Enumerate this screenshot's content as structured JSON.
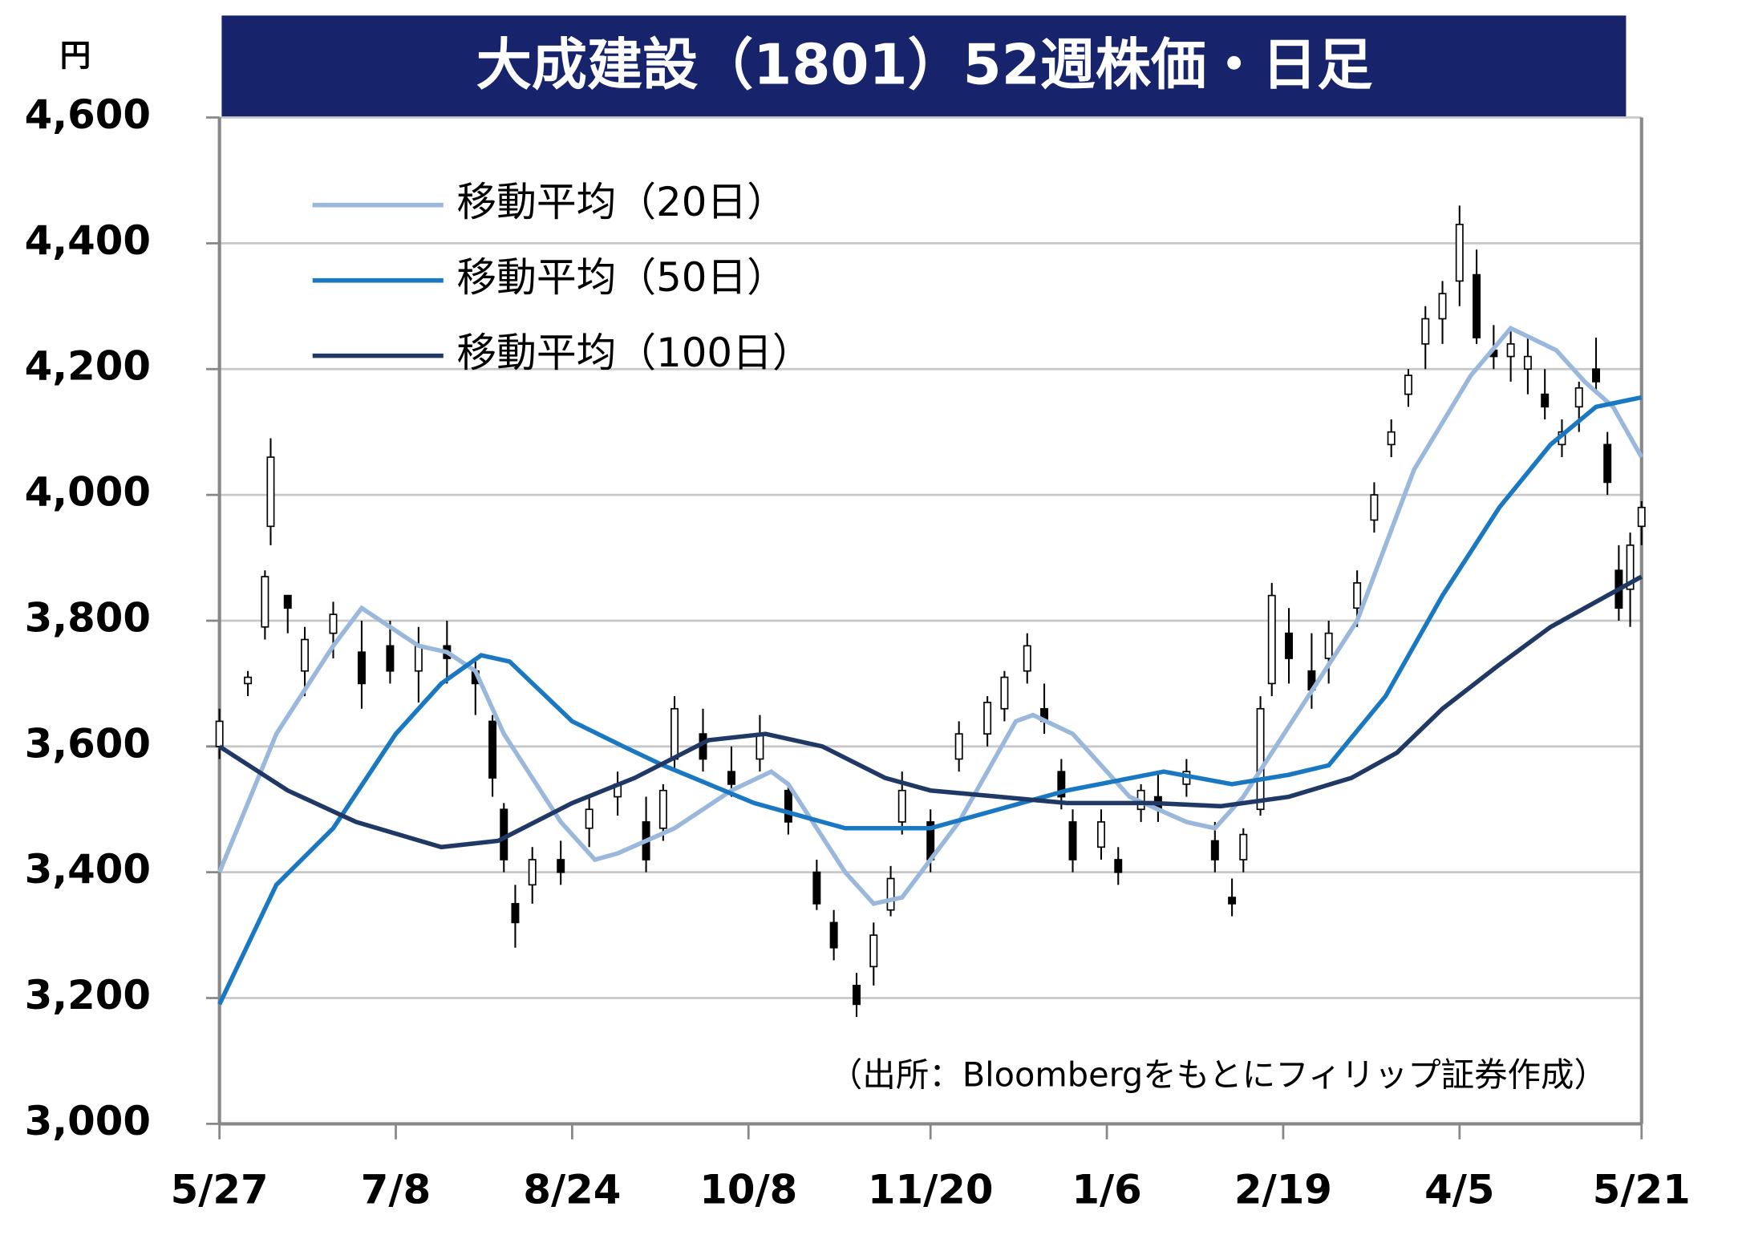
{
  "chart_data": {
    "type": "candlestick",
    "title": "大成建設（1801）52週株価・日足",
    "y_unit": "円",
    "source": "（出所：Bloombergをもとにフィリップ証券作成）",
    "xlim": [
      0,
      250
    ],
    "xticks": [
      {
        "value": 0,
        "label": "5/27"
      },
      {
        "value": 31,
        "label": "7/8"
      },
      {
        "value": 62,
        "label": "8/24"
      },
      {
        "value": 93,
        "label": "10/8"
      },
      {
        "value": 125,
        "label": "11/20"
      },
      {
        "value": 156,
        "label": "1/6"
      },
      {
        "value": 187,
        "label": "2/19"
      },
      {
        "value": 218,
        "label": "4/5"
      },
      {
        "value": 250,
        "label": "5/21"
      }
    ],
    "ylim": [
      3000,
      4600
    ],
    "yticks": [
      {
        "value": 3000,
        "label": "3,000"
      },
      {
        "value": 3200,
        "label": "3,200"
      },
      {
        "value": 3400,
        "label": "3,400"
      },
      {
        "value": 3600,
        "label": "3,600"
      },
      {
        "value": 3800,
        "label": "3,800"
      },
      {
        "value": 4000,
        "label": "4,000"
      },
      {
        "value": 4200,
        "label": "4,200"
      },
      {
        "value": 4400,
        "label": "4,400"
      },
      {
        "value": 4600,
        "label": "4,600"
      }
    ],
    "grid": true,
    "candles": {
      "x": [
        0,
        5,
        8,
        9,
        12,
        15,
        20,
        25,
        30,
        35,
        40,
        45,
        48,
        50,
        52,
        55,
        60,
        65,
        70,
        75,
        78,
        80,
        85,
        90,
        95,
        100,
        105,
        108,
        112,
        115,
        118,
        120,
        125,
        130,
        135,
        138,
        142,
        145,
        148,
        150,
        155,
        158,
        162,
        165,
        170,
        175,
        178,
        180,
        183,
        185,
        188,
        192,
        195,
        200,
        203,
        206,
        209,
        212,
        215,
        218,
        221,
        224,
        227,
        230,
        233,
        236,
        239,
        242,
        244,
        246,
        248,
        250
      ],
      "open": [
        3600,
        3700,
        3790,
        3950,
        3840,
        3720,
        3780,
        3750,
        3760,
        3720,
        3760,
        3720,
        3640,
        3500,
        3350,
        3380,
        3420,
        3470,
        3520,
        3480,
        3470,
        3580,
        3620,
        3560,
        3580,
        3530,
        3400,
        3320,
        3220,
        3250,
        3340,
        3480,
        3480,
        3580,
        3620,
        3660,
        3720,
        3660,
        3560,
        3480,
        3440,
        3420,
        3500,
        3520,
        3540,
        3450,
        3360,
        3420,
        3500,
        3700,
        3780,
        3720,
        3740,
        3820,
        3960,
        4080,
        4160,
        4240,
        4280,
        4340,
        4350,
        4230,
        4220,
        4200,
        4160,
        4080,
        4140,
        4200,
        4080,
        3880,
        3850,
        3950
      ],
      "high": [
        3660,
        3720,
        3880,
        4090,
        3840,
        3790,
        3830,
        3800,
        3800,
        3790,
        3800,
        3740,
        3650,
        3510,
        3380,
        3440,
        3450,
        3520,
        3560,
        3520,
        3540,
        3680,
        3660,
        3600,
        3650,
        3540,
        3420,
        3340,
        3240,
        3320,
        3410,
        3560,
        3500,
        3640,
        3680,
        3720,
        3780,
        3700,
        3580,
        3500,
        3500,
        3440,
        3540,
        3560,
        3580,
        3480,
        3390,
        3470,
        3680,
        3860,
        3820,
        3780,
        3800,
        3880,
        4020,
        4120,
        4200,
        4300,
        4340,
        4460,
        4390,
        4270,
        4260,
        4250,
        4200,
        4120,
        4180,
        4250,
        4100,
        3920,
        3940,
        3990
      ],
      "low": [
        3580,
        3680,
        3770,
        3920,
        3780,
        3680,
        3740,
        3660,
        3700,
        3670,
        3700,
        3650,
        3520,
        3400,
        3280,
        3350,
        3380,
        3440,
        3490,
        3400,
        3450,
        3560,
        3560,
        3520,
        3560,
        3460,
        3340,
        3260,
        3170,
        3220,
        3330,
        3460,
        3400,
        3560,
        3600,
        3640,
        3700,
        3620,
        3500,
        3400,
        3420,
        3380,
        3480,
        3480,
        3520,
        3400,
        3330,
        3400,
        3490,
        3680,
        3700,
        3660,
        3700,
        3790,
        3940,
        4060,
        4140,
        4200,
        4240,
        4300,
        4240,
        4200,
        4180,
        4160,
        4120,
        4060,
        4100,
        4160,
        4000,
        3800,
        3790,
        3920
      ],
      "close": [
        3640,
        3710,
        3870,
        4060,
        3820,
        3770,
        3810,
        3700,
        3720,
        3760,
        3740,
        3700,
        3550,
        3420,
        3320,
        3420,
        3400,
        3500,
        3540,
        3420,
        3530,
        3660,
        3580,
        3540,
        3620,
        3480,
        3350,
        3280,
        3190,
        3300,
        3390,
        3530,
        3420,
        3620,
        3670,
        3710,
        3760,
        3640,
        3520,
        3420,
        3480,
        3400,
        3530,
        3500,
        3560,
        3420,
        3350,
        3460,
        3660,
        3840,
        3740,
        3690,
        3780,
        3860,
        4000,
        4100,
        4190,
        4280,
        4320,
        4430,
        4250,
        4220,
        4240,
        4220,
        4140,
        4100,
        4170,
        4180,
        4020,
        3820,
        3920,
        3980
      ]
    },
    "lines": [
      {
        "name": "移動平均（20日）",
        "color": "#9ab7dc",
        "x": [
          0,
          10,
          20,
          25,
          30,
          35,
          40,
          45,
          50,
          60,
          66,
          70,
          80,
          90,
          97,
          100,
          110,
          115,
          120,
          130,
          140,
          143,
          150,
          160,
          170,
          175,
          180,
          190,
          200,
          210,
          220,
          227,
          235,
          240,
          245,
          250
        ],
        "values": [
          3400,
          3620,
          3760,
          3820,
          3790,
          3760,
          3750,
          3720,
          3620,
          3480,
          3420,
          3430,
          3470,
          3530,
          3560,
          3540,
          3400,
          3350,
          3360,
          3480,
          3640,
          3650,
          3620,
          3520,
          3480,
          3470,
          3520,
          3660,
          3800,
          4040,
          4190,
          4265,
          4230,
          4180,
          4140,
          4060
        ]
      },
      {
        "name": "移動平均（50日）",
        "color": "#1a78c2",
        "x": [
          0,
          10,
          20,
          31,
          39,
          46,
          51,
          62,
          71,
          78,
          94,
          102,
          110,
          125,
          137,
          149,
          166,
          178,
          188,
          195,
          205,
          215,
          225,
          234,
          242,
          250
        ],
        "values": [
          3190,
          3380,
          3470,
          3620,
          3700,
          3745,
          3735,
          3640,
          3600,
          3570,
          3510,
          3490,
          3470,
          3470,
          3500,
          3530,
          3560,
          3540,
          3555,
          3570,
          3680,
          3840,
          3980,
          4080,
          4140,
          4155
        ]
      },
      {
        "name": "移動平均（100日）",
        "color": "#1f3864",
        "x": [
          0,
          12,
          24,
          39,
          49,
          62,
          73,
          86,
          96,
          106,
          117,
          125,
          137,
          149,
          164,
          176,
          188,
          199,
          207,
          215,
          225,
          234,
          242,
          250
        ],
        "values": [
          3600,
          3530,
          3480,
          3440,
          3450,
          3510,
          3550,
          3610,
          3620,
          3600,
          3550,
          3530,
          3520,
          3510,
          3510,
          3505,
          3520,
          3550,
          3590,
          3660,
          3730,
          3790,
          3830,
          3870
        ]
      }
    ]
  }
}
